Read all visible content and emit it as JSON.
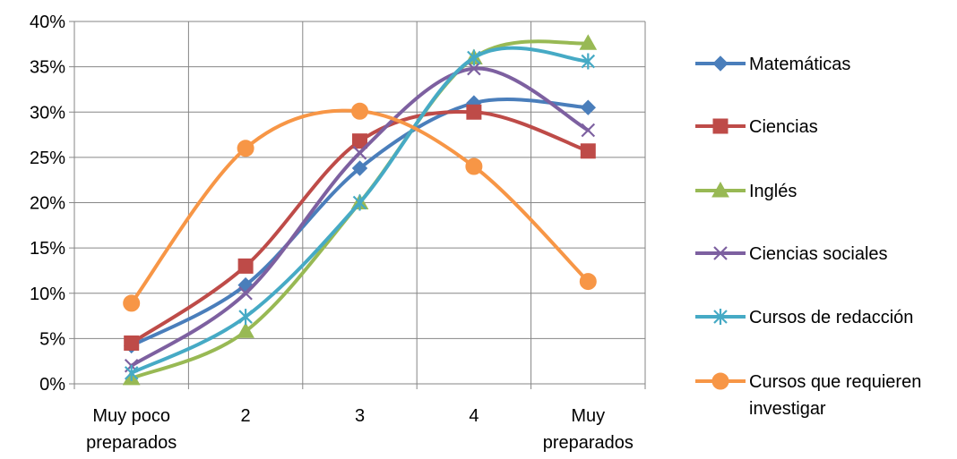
{
  "chart_data": {
    "type": "line",
    "categories": [
      "Muy poco preparados",
      "2",
      "3",
      "4",
      "Muy preparados"
    ],
    "category_lines": [
      [
        "Muy poco",
        "preparados"
      ],
      [
        "2"
      ],
      [
        "3"
      ],
      [
        "4"
      ],
      [
        "Muy",
        "preparados"
      ]
    ],
    "ylim": [
      0,
      40
    ],
    "y_ticks": [
      "0%",
      "5%",
      "10%",
      "15%",
      "20%",
      "25%",
      "30%",
      "35%",
      "40%"
    ],
    "grid": true,
    "smooth": true,
    "legend_position": "right",
    "series": [
      {
        "name": "Matemáticas",
        "color": "#4a7ebb",
        "marker": "diamond",
        "values": [
          4.2,
          10.9,
          23.8,
          31.0,
          30.5
        ]
      },
      {
        "name": "Ciencias",
        "color": "#be4b48",
        "marker": "square",
        "values": [
          4.5,
          13.0,
          26.8,
          30.0,
          25.7
        ]
      },
      {
        "name": "Inglés",
        "color": "#98b954",
        "marker": "triangle",
        "values": [
          0.6,
          5.8,
          20.0,
          36.0,
          37.6
        ]
      },
      {
        "name": "Ciencias sociales",
        "color": "#7d60a0",
        "marker": "x",
        "values": [
          2.0,
          10.0,
          25.5,
          34.8,
          28.0
        ]
      },
      {
        "name": "Cursos de redacción",
        "color": "#46aac5",
        "marker": "star",
        "values": [
          1.2,
          7.4,
          20.0,
          36.0,
          35.6
        ]
      },
      {
        "name": "Cursos que requieren investigar",
        "legend_lines": [
          "Cursos que requieren",
          "investigar"
        ],
        "color": "#f79646",
        "marker": "circle",
        "values": [
          8.9,
          26.0,
          30.1,
          24.0,
          11.3
        ]
      }
    ]
  }
}
